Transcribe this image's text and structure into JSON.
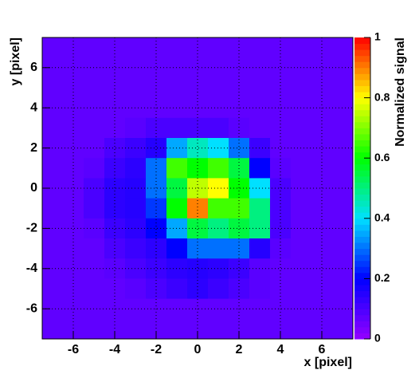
{
  "chart_data": {
    "type": "heatmap",
    "x_label": "x [pixel]",
    "y_label": "y [pixel]",
    "z_label": "Normalized signal",
    "x": [
      -7,
      -6,
      -5,
      -4,
      -3,
      -2,
      -1,
      0,
      1,
      2,
      3,
      4,
      5,
      6,
      7
    ],
    "y": [
      7,
      6,
      5,
      4,
      3,
      2,
      1,
      0,
      -1,
      -2,
      -3,
      -4,
      -5,
      -6,
      -7
    ],
    "z": [
      [
        0.07,
        0.07,
        0.07,
        0.07,
        0.07,
        0.07,
        0.07,
        0.07,
        0.07,
        0.07,
        0.07,
        0.07,
        0.07,
        0.07,
        0.07
      ],
      [
        0.07,
        0.07,
        0.07,
        0.07,
        0.07,
        0.07,
        0.07,
        0.07,
        0.07,
        0.07,
        0.07,
        0.07,
        0.07,
        0.07,
        0.07
      ],
      [
        0.07,
        0.07,
        0.07,
        0.07,
        0.07,
        0.07,
        0.07,
        0.07,
        0.07,
        0.07,
        0.07,
        0.07,
        0.07,
        0.07,
        0.07
      ],
      [
        0.07,
        0.07,
        0.07,
        0.07,
        0.07,
        0.07,
        0.07,
        0.07,
        0.07,
        0.07,
        0.07,
        0.07,
        0.07,
        0.07,
        0.07
      ],
      [
        0.07,
        0.07,
        0.07,
        0.07,
        0.08,
        0.1,
        0.1,
        0.1,
        0.1,
        0.08,
        0.07,
        0.07,
        0.07,
        0.07,
        0.07
      ],
      [
        0.07,
        0.07,
        0.07,
        0.1,
        0.12,
        0.15,
        0.35,
        0.45,
        0.4,
        0.3,
        0.12,
        0.07,
        0.07,
        0.07,
        0.07
      ],
      [
        0.07,
        0.07,
        0.08,
        0.12,
        0.14,
        0.3,
        0.65,
        0.6,
        0.65,
        0.55,
        0.2,
        0.08,
        0.07,
        0.07,
        0.07
      ],
      [
        0.07,
        0.07,
        0.1,
        0.14,
        0.15,
        0.3,
        0.55,
        0.75,
        0.8,
        0.6,
        0.4,
        0.1,
        0.07,
        0.07,
        0.07
      ],
      [
        0.07,
        0.07,
        0.1,
        0.14,
        0.15,
        0.25,
        0.6,
        0.9,
        0.65,
        0.65,
        0.5,
        0.1,
        0.07,
        0.07,
        0.07
      ],
      [
        0.07,
        0.07,
        0.08,
        0.12,
        0.14,
        0.2,
        0.35,
        0.55,
        0.5,
        0.55,
        0.5,
        0.1,
        0.07,
        0.07,
        0.07
      ],
      [
        0.07,
        0.07,
        0.07,
        0.1,
        0.12,
        0.14,
        0.2,
        0.3,
        0.3,
        0.3,
        0.15,
        0.08,
        0.07,
        0.07,
        0.07
      ],
      [
        0.07,
        0.07,
        0.07,
        0.08,
        0.1,
        0.12,
        0.14,
        0.15,
        0.14,
        0.12,
        0.08,
        0.07,
        0.07,
        0.07,
        0.07
      ],
      [
        0.07,
        0.07,
        0.07,
        0.07,
        0.08,
        0.1,
        0.12,
        0.14,
        0.12,
        0.1,
        0.08,
        0.07,
        0.07,
        0.07,
        0.07
      ],
      [
        0.07,
        0.07,
        0.07,
        0.07,
        0.07,
        0.07,
        0.07,
        0.07,
        0.07,
        0.07,
        0.07,
        0.07,
        0.07,
        0.07,
        0.07
      ],
      [
        0.07,
        0.07,
        0.07,
        0.07,
        0.07,
        0.07,
        0.07,
        0.07,
        0.07,
        0.07,
        0.07,
        0.07,
        0.07,
        0.07,
        0.07
      ]
    ],
    "xlim": [
      -7.5,
      7.5
    ],
    "ylim": [
      -7.5,
      7.5
    ],
    "xticks": [
      -6,
      -4,
      -2,
      0,
      2,
      4,
      6
    ],
    "yticks": [
      -6,
      -4,
      -2,
      0,
      2,
      4,
      6
    ],
    "zlim": [
      0,
      1
    ],
    "zticks": [
      0,
      0.2,
      0.4,
      0.6,
      0.8,
      1
    ],
    "colorscale": [
      "#9400ff",
      "#0000ff",
      "#00e0ff",
      "#00ff00",
      "#ffff00",
      "#ff0000"
    ],
    "grid": true
  }
}
